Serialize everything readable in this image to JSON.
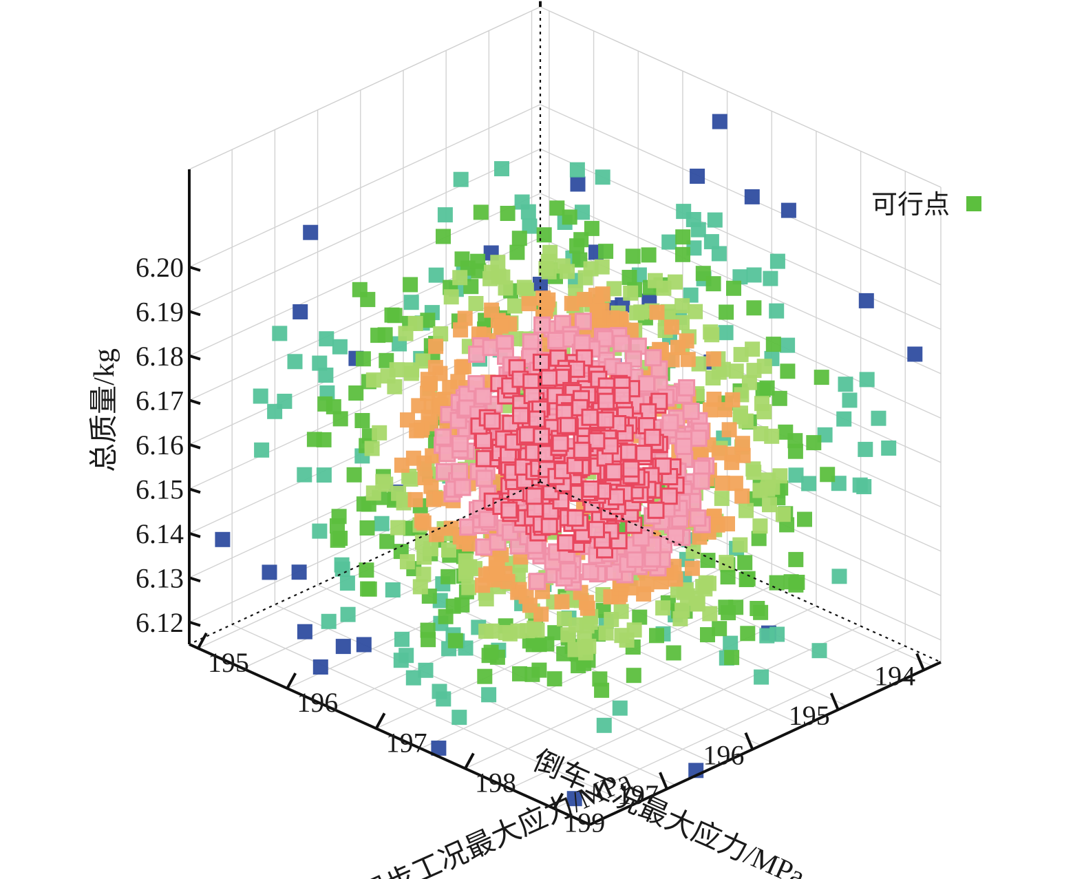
{
  "chart_data": {
    "type": "scatter",
    "x_axis": {
      "label": "倒车工况最大应力/MPa",
      "ticks": [
        "194",
        "195",
        "196",
        "197"
      ],
      "range": [
        193.8,
        197.9
      ]
    },
    "y_axis": {
      "label": "起步工况最大应力/MPa",
      "ticks": [
        "195",
        "196",
        "197",
        "198",
        "199"
      ],
      "range": [
        194.9,
        199.4
      ]
    },
    "z_axis": {
      "label": "总质量/kg",
      "ticks": [
        "6.12",
        "6.13",
        "6.14",
        "6.15",
        "6.16",
        "6.17",
        "6.18",
        "6.19",
        "6.20"
      ],
      "range": [
        6.115,
        6.222
      ]
    },
    "legend": {
      "label": "可行点",
      "color": "#5cbf3e",
      "position": "top-right"
    },
    "grid": true,
    "color_scale": [
      "#2f4da0",
      "#55c39a",
      "#5cbf3e",
      "#a8d86a",
      "#f2a45a",
      "#f090a8",
      "#e8475e"
    ],
    "marker": "square",
    "point_count": 1500,
    "distribution_center": {
      "x": 195.9,
      "y": 197.3,
      "z": 6.162
    },
    "distribution_spread": {
      "x": 0.85,
      "y": 0.95,
      "z": 0.021
    }
  }
}
